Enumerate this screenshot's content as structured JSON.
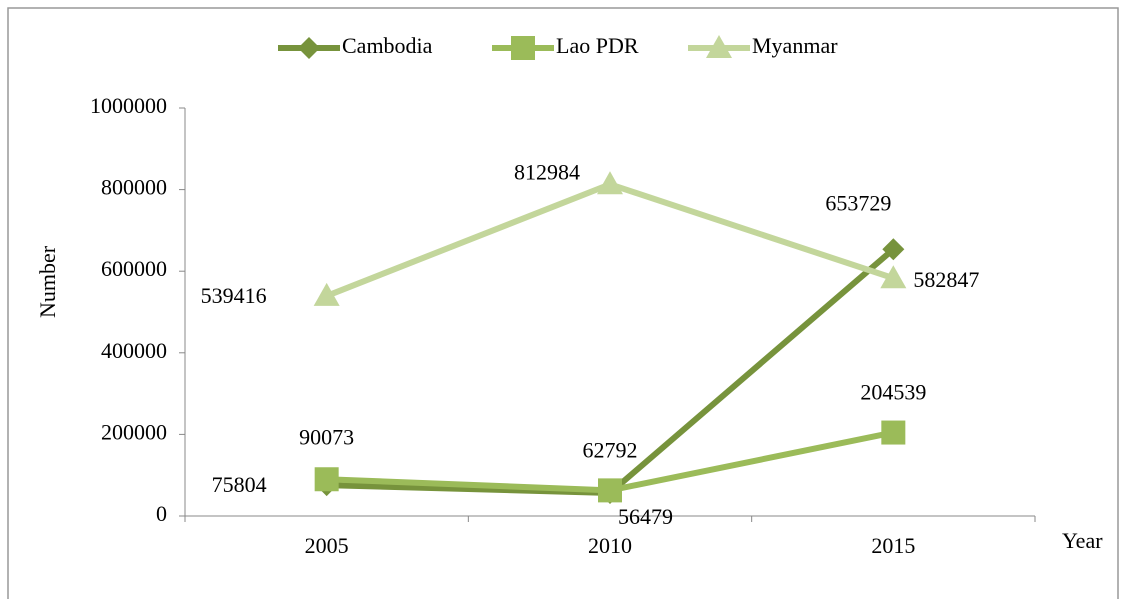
{
  "chart_data": {
    "type": "line",
    "categories": [
      "2005",
      "2010",
      "2015"
    ],
    "series": [
      {
        "name": "Cambodia",
        "color": "#77933c",
        "marker": "diamond",
        "values": [
          75804,
          56479,
          653729
        ]
      },
      {
        "name": "Lao PDR",
        "color": "#9bbb59",
        "marker": "square",
        "values": [
          90073,
          62792,
          204539
        ]
      },
      {
        "name": "Myanmar",
        "color": "#c3d69b",
        "marker": "triangle",
        "values": [
          539416,
          812984,
          582847
        ]
      }
    ],
    "ylim": [
      0,
      1000000
    ],
    "yticks": [
      0,
      200000,
      400000,
      600000,
      800000,
      1000000
    ],
    "y_label": "Number",
    "x_label": "Year",
    "legend": "top",
    "grid": false
  }
}
